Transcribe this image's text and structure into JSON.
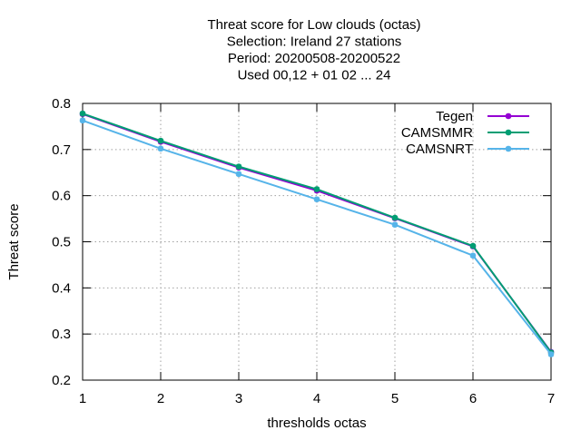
{
  "chart_data": {
    "type": "line",
    "title_lines": [
      "Threat score  for Low clouds (octas)",
      "Selection: Ireland      27 stations",
      "Period: 20200508-20200522",
      "Used  00,12  + 01 02 ... 24"
    ],
    "xlabel": "thresholds octas",
    "ylabel": "Threat score",
    "xlim": [
      1,
      7
    ],
    "ylim": [
      0.2,
      0.8
    ],
    "xticks": [
      1,
      2,
      3,
      4,
      5,
      6,
      7
    ],
    "yticks": [
      0.2,
      0.3,
      0.4,
      0.5,
      0.6,
      0.7,
      0.8
    ],
    "grid": true,
    "legend_position": "top-right",
    "x": [
      1,
      2,
      3,
      4,
      5,
      6,
      7
    ],
    "series": [
      {
        "name": "Tegen",
        "color": "#9400d3",
        "values": [
          0.777,
          0.717,
          0.661,
          0.611,
          0.551,
          0.49,
          0.261
        ]
      },
      {
        "name": "CAMSMMR",
        "color": "#009e73",
        "values": [
          0.778,
          0.719,
          0.663,
          0.614,
          0.552,
          0.491,
          0.26
        ]
      },
      {
        "name": "CAMSNRT",
        "color": "#56b4e9",
        "values": [
          0.763,
          0.702,
          0.647,
          0.592,
          0.537,
          0.47,
          0.256
        ]
      }
    ]
  }
}
